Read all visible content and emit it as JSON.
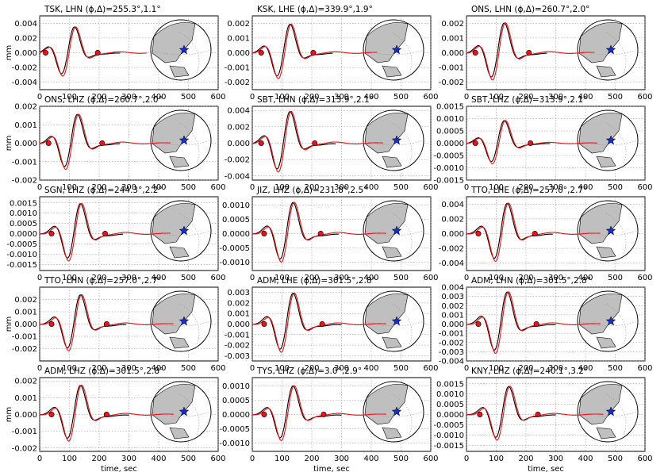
{
  "colors": {
    "observed": "#000000",
    "synthetic": "#e8141c",
    "marker": "#e8141c",
    "star": "#1a2ccf",
    "land": "#bfbfbf",
    "grid": "#888888"
  },
  "figure": {
    "ylabel": "mm",
    "xlabel": "time, sec",
    "x_ticks": [
      "0",
      "100",
      "200",
      "300",
      "400",
      "500",
      "600"
    ]
  },
  "chart_data": [
    {
      "type": "line",
      "title": "TSK, LHN (ϕ,Δ)=255.3°,1.1°",
      "xlim": [
        0,
        600
      ],
      "ylim": [
        -0.005,
        0.005
      ],
      "ylabel": "mm",
      "xlabel": "",
      "y_ticks": [
        "0.004",
        "0.002",
        "0.000",
        "-0.002",
        "-0.004"
      ],
      "y_tick_values": [
        0.004,
        0.002,
        0,
        -0.002,
        -0.004
      ],
      "x_ticks": [
        "0",
        "100",
        "200",
        "300",
        "400",
        "500",
        "600"
      ],
      "amplitude": 0.0038,
      "markers": [
        20,
        195
      ],
      "obs_end": 270,
      "syn_end": 360,
      "series": [
        {
          "kind": "observed"
        },
        {
          "kind": "synthetic"
        }
      ]
    },
    {
      "type": "line",
      "title": "KSK, LHE (ϕ,Δ)=339.9°,1.9°",
      "xlim": [
        0,
        600
      ],
      "ylim": [
        -0.0025,
        0.0025
      ],
      "ylabel": "",
      "xlabel": "",
      "y_ticks": [
        "0.002",
        "0.001",
        "0.000",
        "-0.001",
        "-0.002"
      ],
      "y_tick_values": [
        0.002,
        0.001,
        0,
        -0.001,
        -0.002
      ],
      "x_ticks": [
        "0",
        "100",
        "200",
        "300",
        "400",
        "500",
        "600"
      ],
      "amplitude": 0.0021,
      "markers": [
        30,
        205
      ],
      "obs_end": 270,
      "syn_end": 420,
      "series": [
        {
          "kind": "observed"
        },
        {
          "kind": "synthetic"
        }
      ]
    },
    {
      "type": "line",
      "title": "ONS, LHN (ϕ,Δ)=260.7°,2.0°",
      "xlim": [
        0,
        600
      ],
      "ylim": [
        -0.0025,
        0.0025
      ],
      "ylabel": "",
      "xlabel": "",
      "y_ticks": [
        "0.002",
        "0.001",
        "0.000",
        "-0.001",
        "-0.002"
      ],
      "y_tick_values": [
        0.002,
        0.001,
        0,
        -0.001,
        -0.002
      ],
      "x_ticks": [
        "0",
        "100",
        "200",
        "300",
        "400",
        "500",
        "600"
      ],
      "amplitude": 0.0022,
      "markers": [
        30,
        210
      ],
      "obs_end": 270,
      "syn_end": 430,
      "series": [
        {
          "kind": "observed"
        },
        {
          "kind": "synthetic"
        }
      ]
    },
    {
      "type": "line",
      "title": "ONS, LHZ (ϕ,Δ)=260.7°,2.0°",
      "xlim": [
        0,
        600
      ],
      "ylim": [
        -0.002,
        0.002
      ],
      "ylabel": "mm",
      "xlabel": "",
      "y_ticks": [
        "0.002",
        "0.001",
        "0.000",
        "-0.001",
        "-0.002"
      ],
      "y_tick_values": [
        0.002,
        0.001,
        0,
        -0.001,
        -0.002
      ],
      "x_ticks": [
        "0",
        "100",
        "200",
        "300",
        "400",
        "500",
        "600"
      ],
      "amplitude": 0.0017,
      "markers": [
        30,
        210
      ],
      "obs_end": 270,
      "syn_end": 440,
      "series": [
        {
          "kind": "observed"
        },
        {
          "kind": "synthetic"
        }
      ]
    },
    {
      "type": "line",
      "title": "SBT, LHN (ϕ,Δ)=313.9°,2.1°",
      "xlim": [
        0,
        600
      ],
      "ylim": [
        -0.0045,
        0.0045
      ],
      "ylabel": "",
      "xlabel": "",
      "y_ticks": [
        "0.004",
        "0.002",
        "0.000",
        "-0.002",
        "-0.004"
      ],
      "y_tick_values": [
        0.004,
        0.002,
        0,
        -0.002,
        -0.004
      ],
      "x_ticks": [
        "0",
        "100",
        "200",
        "300",
        "400",
        "500",
        "600"
      ],
      "amplitude": 0.0042,
      "markers": [
        30,
        210
      ],
      "obs_end": 280,
      "syn_end": 440,
      "series": [
        {
          "kind": "observed"
        },
        {
          "kind": "synthetic"
        }
      ]
    },
    {
      "type": "line",
      "title": "SBT, LHZ (ϕ,Δ)=313.9°,2.1°",
      "xlim": [
        0,
        600
      ],
      "ylim": [
        -0.0015,
        0.0015
      ],
      "ylabel": "",
      "xlabel": "",
      "y_ticks": [
        "0.0015",
        "0.0010",
        "0.0005",
        "0.0000",
        "-0.0005",
        "-0.0010",
        "-0.0015"
      ],
      "y_tick_values": [
        0.0015,
        0.001,
        0.0005,
        0,
        -0.0005,
        -0.001,
        -0.0015
      ],
      "x_ticks": [
        "0",
        "100",
        "200",
        "300",
        "400",
        "500",
        "600"
      ],
      "amplitude": 0.001,
      "markers": [
        30,
        215
      ],
      "obs_end": 280,
      "syn_end": 440,
      "series": [
        {
          "kind": "observed"
        },
        {
          "kind": "synthetic"
        }
      ]
    },
    {
      "type": "line",
      "title": "SGN, LHZ (ϕ,Δ)=244.3°,2.2°",
      "xlim": [
        0,
        600
      ],
      "ylim": [
        -0.0018,
        0.0018
      ],
      "ylabel": "",
      "xlabel": "",
      "y_ticks": [
        "0.0015",
        "0.0010",
        "0.0005",
        "0.0000",
        "-0.0005",
        "-0.0010",
        "-0.0015"
      ],
      "y_tick_values": [
        0.0015,
        0.001,
        0.0005,
        0,
        -0.0005,
        -0.001,
        -0.0015
      ],
      "x_ticks": [
        "0",
        "100",
        "200",
        "300",
        "400",
        "500",
        "600"
      ],
      "amplitude": 0.0016,
      "markers": [
        40,
        220
      ],
      "obs_end": 280,
      "syn_end": 440,
      "series": [
        {
          "kind": "observed"
        },
        {
          "kind": "synthetic"
        }
      ]
    },
    {
      "type": "line",
      "title": "JIZ, LHZ (ϕ,Δ)=231.8°,2.5°",
      "xlim": [
        0,
        600
      ],
      "ylim": [
        -0.0013,
        0.0013
      ],
      "ylabel": "",
      "xlabel": "",
      "y_ticks": [
        "0.0010",
        "0.0005",
        "0.0000",
        "-0.0005",
        "-0.0010"
      ],
      "y_tick_values": [
        0.001,
        0.0005,
        0,
        -0.0005,
        -0.001
      ],
      "x_ticks": [
        "0",
        "100",
        "200",
        "300",
        "400",
        "500",
        "600"
      ],
      "amplitude": 0.0012,
      "markers": [
        40,
        230
      ],
      "obs_end": 290,
      "syn_end": 450,
      "series": [
        {
          "kind": "observed"
        },
        {
          "kind": "synthetic"
        }
      ]
    },
    {
      "type": "line",
      "title": "TTO, LHE (ϕ,Δ)=257.0°,2.7°",
      "xlim": [
        0,
        600
      ],
      "ylim": [
        -0.005,
        0.005
      ],
      "ylabel": "",
      "xlabel": "",
      "y_ticks": [
        "0.004",
        "0.002",
        "0.000",
        "-0.002",
        "-0.004"
      ],
      "y_tick_values": [
        0.004,
        0.002,
        0,
        -0.002,
        -0.004
      ],
      "x_ticks": [
        "0",
        "100",
        "200",
        "300",
        "400",
        "500",
        "600"
      ],
      "amplitude": 0.0045,
      "markers": [
        40,
        230
      ],
      "obs_end": 290,
      "syn_end": 450,
      "series": [
        {
          "kind": "observed"
        },
        {
          "kind": "synthetic"
        }
      ]
    },
    {
      "type": "line",
      "title": "TTO, LHN (ϕ,Δ)=257.0°,2.7°",
      "xlim": [
        0,
        600
      ],
      "ylim": [
        -0.003,
        0.003
      ],
      "ylabel": "mm",
      "xlabel": "",
      "y_ticks": [
        "0.002",
        "0.001",
        "0.000",
        "-0.001",
        "-0.002"
      ],
      "y_tick_values": [
        0.002,
        0.001,
        0,
        -0.001,
        -0.002
      ],
      "x_ticks": [
        "0",
        "100",
        "200",
        "300",
        "400",
        "500",
        "600"
      ],
      "amplitude": 0.0026,
      "markers": [
        40,
        225
      ],
      "obs_end": 290,
      "syn_end": 450,
      "series": [
        {
          "kind": "observed"
        },
        {
          "kind": "synthetic"
        }
      ]
    },
    {
      "type": "line",
      "title": "ADM, LHE (ϕ,Δ)=301.5°,2.8°",
      "xlim": [
        0,
        600
      ],
      "ylim": [
        -0.0035,
        0.0035
      ],
      "ylabel": "",
      "xlabel": "",
      "y_ticks": [
        "0.003",
        "0.002",
        "0.001",
        "0.000",
        "-0.001",
        "-0.002",
        "-0.003"
      ],
      "y_tick_values": [
        0.003,
        0.002,
        0.001,
        0,
        -0.001,
        -0.002,
        -0.003
      ],
      "x_ticks": [
        "0",
        "100",
        "200",
        "300",
        "400",
        "500",
        "600"
      ],
      "amplitude": 0.0032,
      "markers": [
        40,
        235
      ],
      "obs_end": 300,
      "syn_end": 450,
      "series": [
        {
          "kind": "observed"
        },
        {
          "kind": "synthetic"
        }
      ]
    },
    {
      "type": "line",
      "title": "ADM, LHN (ϕ,Δ)=301.5°,2.8°",
      "xlim": [
        0,
        600
      ],
      "ylim": [
        -0.004,
        0.004
      ],
      "ylabel": "",
      "xlabel": "",
      "y_ticks": [
        "0.004",
        "0.003",
        "0.002",
        "0.001",
        "0.000",
        "-0.001",
        "-0.002",
        "-0.003",
        "-0.004"
      ],
      "y_tick_values": [
        0.004,
        0.003,
        0.002,
        0.001,
        0,
        -0.001,
        -0.002,
        -0.003,
        -0.004
      ],
      "x_ticks": [
        "0",
        "100",
        "200",
        "300",
        "400",
        "500",
        "600"
      ],
      "amplitude": 0.0038,
      "markers": [
        40,
        235
      ],
      "obs_end": 300,
      "syn_end": 450,
      "series": [
        {
          "kind": "observed"
        },
        {
          "kind": "synthetic"
        }
      ]
    },
    {
      "type": "line",
      "title": "ADM, LHZ (ϕ,Δ)=301.5°,2.8°",
      "xlim": [
        0,
        600
      ],
      "ylim": [
        -0.0022,
        0.0022
      ],
      "ylabel": "mm",
      "xlabel": "time, sec",
      "y_ticks": [
        "0.002",
        "0.001",
        "0.000",
        "-0.001",
        "-0.002"
      ],
      "y_tick_values": [
        0.002,
        0.001,
        0,
        -0.001,
        -0.002
      ],
      "x_ticks": [
        "0",
        "100",
        "200",
        "300",
        "400",
        "500",
        "600"
      ],
      "amplitude": 0.0019,
      "markers": [
        40,
        225
      ],
      "obs_end": 300,
      "syn_end": 450,
      "series": [
        {
          "kind": "observed"
        },
        {
          "kind": "synthetic"
        }
      ]
    },
    {
      "type": "line",
      "title": "TYS, LHZ (ϕ,Δ)=3.0°,2.9°",
      "xlim": [
        0,
        600
      ],
      "ylim": [
        -0.0013,
        0.0013
      ],
      "ylabel": "",
      "xlabel": "time, sec",
      "y_ticks": [
        "0.0010",
        "0.0005",
        "0.0000",
        "-0.0005",
        "-0.0010"
      ],
      "y_tick_values": [
        0.001,
        0.0005,
        0,
        -0.0005,
        -0.001
      ],
      "x_ticks": [
        "0",
        "100",
        "200",
        "300",
        "400",
        "500",
        "600"
      ],
      "amplitude": 0.0011,
      "markers": [
        40,
        240
      ],
      "obs_end": 300,
      "syn_end": 450,
      "series": [
        {
          "kind": "observed"
        },
        {
          "kind": "synthetic"
        }
      ]
    },
    {
      "type": "line",
      "title": "KNY, LHZ (ϕ,Δ)=240.1°,3.2°",
      "xlim": [
        0,
        600
      ],
      "ylim": [
        -0.0018,
        0.0018
      ],
      "ylabel": "",
      "xlabel": "time, sec",
      "y_ticks": [
        "0.0015",
        "0.0010",
        "0.0005",
        "0.0000",
        "-0.0005",
        "-0.0010",
        "-0.0015"
      ],
      "y_tick_values": [
        0.0015,
        0.001,
        0.0005,
        0,
        -0.0005,
        -0.001,
        -0.0015
      ],
      "x_ticks": [
        "0",
        "100",
        "200",
        "300",
        "400",
        "500",
        "600"
      ],
      "amplitude": 0.0015,
      "markers": [
        45,
        240
      ],
      "obs_end": 300,
      "syn_end": 460,
      "series": [
        {
          "kind": "observed"
        },
        {
          "kind": "synthetic"
        }
      ]
    }
  ]
}
